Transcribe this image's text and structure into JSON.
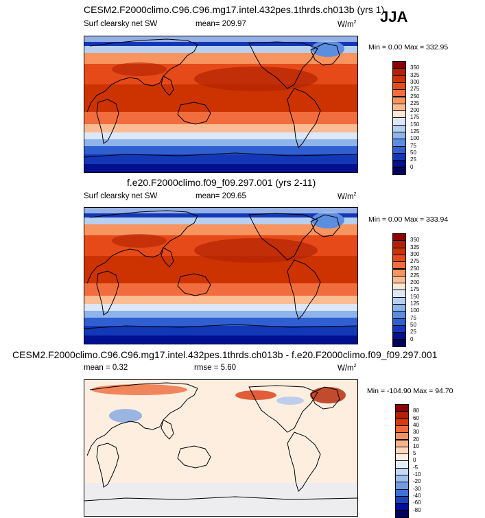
{
  "season": "JJA",
  "panels": [
    {
      "title": "CESM2.F2000climo.C96.C96.mg17.intel.432pes.1thrds.ch013b (yrs 1)",
      "variable": "Surf clearsky net SW",
      "stat": "mean= 209.97",
      "units": "W/m",
      "units_sup": "2",
      "minmax": "Min =  0.00 Max = 332.95"
    },
    {
      "title": "f.e20.F2000climo.f09_f09.297.001 (yrs 2-11)",
      "variable": "Surf clearsky net SW",
      "stat": "mean= 209.65",
      "units": "W/m",
      "units_sup": "2",
      "minmax": "Min =  0.00 Max = 333.94"
    },
    {
      "title": "CESM2.F2000climo.C96.C96.mg17.intel.432pes.1thrds.ch013b - f.e20.F2000climo.f09_f09.297.001",
      "mean": "mean =   0.32",
      "rmse": "rmse =   5.60",
      "units": "W/m",
      "units_sup": "2",
      "minmax": "Min = -104.90 Max =  94.70"
    }
  ],
  "chart_data": [
    {
      "type": "heatmap",
      "title": "CESM2.F2000climo.C96.C96.mg17.intel.432pes.1thrds.ch013b (yrs 1)",
      "variable": "Surf clearsky net SW",
      "units": "W/m2",
      "mean": 209.97,
      "min": 0.0,
      "max": 332.95,
      "colorbar_ticks": [
        "350",
        "325",
        "300",
        "275",
        "250",
        "225",
        "200",
        "175",
        "150",
        "125",
        "100",
        "75",
        "50",
        "25",
        "0"
      ],
      "colorbar_colors": [
        "#8b0000",
        "#b22200",
        "#cc3300",
        "#e64a19",
        "#f26d3d",
        "#f7945f",
        "#fbbb93",
        "#fde8d8",
        "#dce8f8",
        "#b8d0f0",
        "#8eb4ea",
        "#5b8de0",
        "#2f5fd0",
        "#1238b8",
        "#001090",
        "#00005f"
      ]
    },
    {
      "type": "heatmap",
      "title": "f.e20.F2000climo.f09_f09.297.001 (yrs 2-11)",
      "variable": "Surf clearsky net SW",
      "units": "W/m2",
      "mean": 209.65,
      "min": 0.0,
      "max": 333.94,
      "colorbar_ticks": [
        "350",
        "325",
        "300",
        "275",
        "250",
        "225",
        "200",
        "175",
        "150",
        "125",
        "100",
        "75",
        "50",
        "25",
        "0"
      ],
      "colorbar_colors": [
        "#8b0000",
        "#b22200",
        "#cc3300",
        "#e64a19",
        "#f26d3d",
        "#f7945f",
        "#fbbb93",
        "#fde8d8",
        "#dce8f8",
        "#b8d0f0",
        "#8eb4ea",
        "#5b8de0",
        "#2f5fd0",
        "#1238b8",
        "#001090",
        "#00005f"
      ]
    },
    {
      "type": "heatmap",
      "title": "CESM2.F2000climo.C96.C96.mg17.intel.432pes.1thrds.ch013b - f.e20.F2000climo.f09_f09.297.001",
      "units": "W/m2",
      "mean": 0.32,
      "rmse": 5.6,
      "min": -104.9,
      "max": 94.7,
      "colorbar_ticks": [
        "80",
        "60",
        "40",
        "30",
        "20",
        "10",
        "5",
        "0",
        "-5",
        "-10",
        "-20",
        "-30",
        "-40",
        "-60",
        "-80"
      ],
      "colorbar_colors": [
        "#8b0000",
        "#b22200",
        "#d83a10",
        "#ee6a3a",
        "#f59060",
        "#fab48c",
        "#fdd8bf",
        "#fdeee0",
        "#e3edfa",
        "#c6d9f3",
        "#9fc0ec",
        "#6f9ce3",
        "#3f72d6",
        "#1a45bd",
        "#00109a",
        "#00005f"
      ]
    }
  ]
}
